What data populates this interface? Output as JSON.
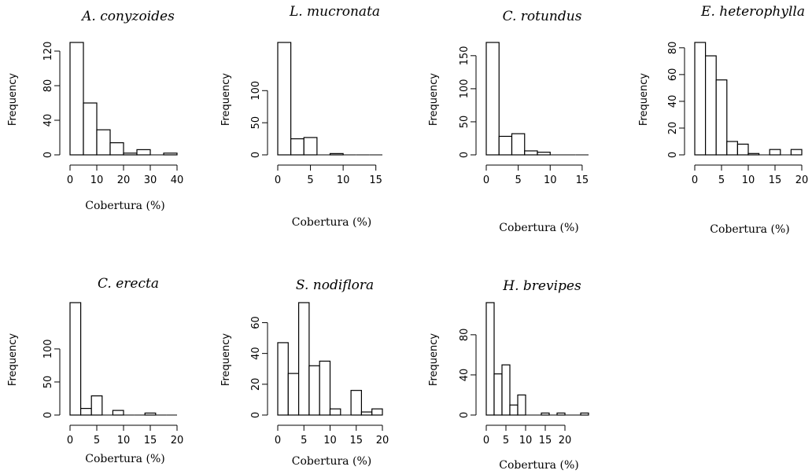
{
  "chart_data": [
    {
      "type": "bar",
      "title": "A. conyzoides",
      "xlabel": "Cobertura (%)",
      "ylabel": "Frequency",
      "bin_width": 5,
      "bin_start": 0,
      "values": [
        130,
        60,
        29,
        14,
        2,
        6,
        0,
        2
      ],
      "xticks": [
        0,
        10,
        20,
        30,
        40
      ],
      "yticks": [
        0,
        40,
        80,
        120
      ],
      "xlim": [
        0,
        40
      ],
      "ylim": [
        0,
        130
      ]
    },
    {
      "type": "bar",
      "title": "L. mucronata",
      "xlabel": "Cobertura (%)",
      "ylabel": "Frequency",
      "bin_width": 2,
      "bin_start": 0,
      "values": [
        175,
        25,
        27,
        0,
        2,
        0,
        0,
        0
      ],
      "xticks": [
        0,
        5,
        10,
        15
      ],
      "yticks": [
        0,
        50,
        100
      ],
      "xlim": [
        0,
        16
      ],
      "ylim": [
        0,
        175
      ]
    },
    {
      "type": "bar",
      "title": "C. rotundus",
      "xlabel": "Cobertura (%)",
      "ylabel": "Frequency",
      "bin_width": 2,
      "bin_start": 0,
      "values": [
        170,
        28,
        32,
        6,
        4,
        0,
        0,
        0
      ],
      "xticks": [
        0,
        5,
        10,
        15
      ],
      "yticks": [
        0,
        50,
        100,
        150
      ],
      "xlim": [
        0,
        16
      ],
      "ylim": [
        0,
        170
      ]
    },
    {
      "type": "bar",
      "title": "E. heterophylla",
      "xlabel": "Cobertura (%)",
      "ylabel": "Frequency",
      "bin_width": 2,
      "bin_start": 0,
      "values": [
        84,
        74,
        56,
        10,
        8,
        1,
        0,
        4,
        0,
        4
      ],
      "xticks": [
        0,
        5,
        10,
        15,
        20
      ],
      "yticks": [
        0,
        20,
        40,
        60,
        80
      ],
      "xlim": [
        0,
        20
      ],
      "ylim": [
        0,
        84
      ]
    },
    {
      "type": "bar",
      "title": "C. erecta",
      "xlabel": "Cobertura (%)",
      "ylabel": "Frequency",
      "bin_width": 2,
      "bin_start": 0,
      "values": [
        170,
        10,
        29,
        0,
        7,
        0,
        0,
        3,
        0,
        0
      ],
      "xticks": [
        0,
        5,
        10,
        15,
        20
      ],
      "yticks": [
        0,
        50,
        100
      ],
      "xlim": [
        0,
        20
      ],
      "ylim": [
        0,
        170
      ]
    },
    {
      "type": "bar",
      "title": "S. nodiflora",
      "xlabel": "Cobertura (%)",
      "ylabel": "Frequency",
      "bin_width": 2,
      "bin_start": 0,
      "values": [
        47,
        27,
        73,
        32,
        35,
        4,
        0,
        16,
        2,
        4
      ],
      "xticks": [
        0,
        5,
        10,
        15,
        20
      ],
      "yticks": [
        0,
        20,
        40,
        60
      ],
      "xlim": [
        0,
        20
      ],
      "ylim": [
        0,
        73
      ]
    },
    {
      "type": "bar",
      "title": "H. brevipes",
      "xlabel": "Cobertura (%)",
      "ylabel": "Frequency",
      "bin_width": 2,
      "bin_start": 0,
      "values": [
        112,
        41,
        50,
        10,
        20,
        0,
        0,
        2,
        0,
        2,
        0,
        0,
        2
      ],
      "xticks": [
        0,
        5,
        10,
        15,
        20
      ],
      "yticks": [
        0,
        40,
        80
      ],
      "xlim": [
        0,
        26
      ],
      "ylim": [
        0,
        112
      ]
    }
  ]
}
